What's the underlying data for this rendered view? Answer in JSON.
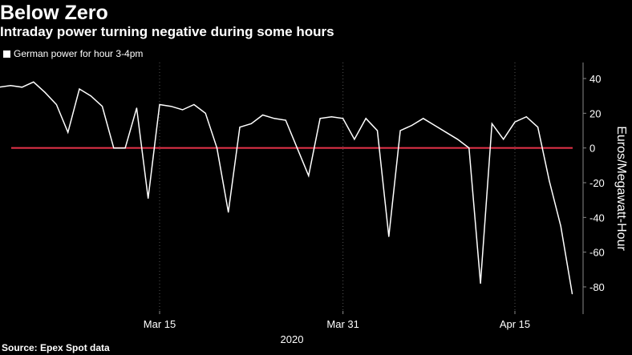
{
  "title": "Below Zero",
  "subtitle": "Intraday power turning negative during some hours",
  "source": "Source: Epex Spot data",
  "colors": {
    "background": "#000000",
    "line": "#ffffff",
    "zero_line": "#e8334a",
    "grid": "#555555"
  },
  "chart_data": {
    "type": "line",
    "title": "Below Zero",
    "subtitle": "Intraday power turning negative during some hours",
    "xlabel": "2020",
    "ylabel": "Euros/Megawatt-Hour",
    "ylim": [
      -85,
      48
    ],
    "y_ticks": [
      40,
      20,
      0,
      -20,
      -40,
      -60,
      -80
    ],
    "y_axis_side": "right",
    "grid": "vertical dotted at x ticks",
    "legend": "top-left",
    "x_ticks": [
      {
        "label": "Mar 15",
        "date": "2020-03-15"
      },
      {
        "label": "Mar 31",
        "date": "2020-03-31"
      },
      {
        "label": "Apr 15",
        "date": "2020-04-15"
      }
    ],
    "year_label": "2020",
    "reference_line": {
      "value": 0,
      "color": "#e8334a"
    },
    "series": [
      {
        "name": "German power for hour 3-4pm",
        "color": "#ffffff",
        "points": [
          {
            "date": "2020-03-01",
            "value": 35
          },
          {
            "date": "2020-03-02",
            "value": 36
          },
          {
            "date": "2020-03-03",
            "value": 35
          },
          {
            "date": "2020-03-04",
            "value": 38
          },
          {
            "date": "2020-03-05",
            "value": 32
          },
          {
            "date": "2020-03-06",
            "value": 25
          },
          {
            "date": "2020-03-07",
            "value": 9
          },
          {
            "date": "2020-03-08",
            "value": 34
          },
          {
            "date": "2020-03-09",
            "value": 30
          },
          {
            "date": "2020-03-10",
            "value": 24
          },
          {
            "date": "2020-03-11",
            "value": 0
          },
          {
            "date": "2020-03-12",
            "value": 0
          },
          {
            "date": "2020-03-13",
            "value": 23
          },
          {
            "date": "2020-03-14",
            "value": -29
          },
          {
            "date": "2020-03-15",
            "value": 25
          },
          {
            "date": "2020-03-16",
            "value": 24
          },
          {
            "date": "2020-03-17",
            "value": 22
          },
          {
            "date": "2020-03-18",
            "value": 25
          },
          {
            "date": "2020-03-19",
            "value": 20
          },
          {
            "date": "2020-03-20",
            "value": 0
          },
          {
            "date": "2020-03-21",
            "value": -37
          },
          {
            "date": "2020-03-22",
            "value": 12
          },
          {
            "date": "2020-03-23",
            "value": 14
          },
          {
            "date": "2020-03-24",
            "value": 19
          },
          {
            "date": "2020-03-25",
            "value": 17
          },
          {
            "date": "2020-03-26",
            "value": 16
          },
          {
            "date": "2020-03-27",
            "value": 0
          },
          {
            "date": "2020-03-28",
            "value": -16
          },
          {
            "date": "2020-03-29",
            "value": 17
          },
          {
            "date": "2020-03-30",
            "value": 18
          },
          {
            "date": "2020-03-31",
            "value": 17
          },
          {
            "date": "2020-04-01",
            "value": 5
          },
          {
            "date": "2020-04-02",
            "value": 17
          },
          {
            "date": "2020-04-03",
            "value": 10
          },
          {
            "date": "2020-04-04",
            "value": -51
          },
          {
            "date": "2020-04-05",
            "value": 10
          },
          {
            "date": "2020-04-06",
            "value": 13
          },
          {
            "date": "2020-04-07",
            "value": 17
          },
          {
            "date": "2020-04-08",
            "value": 13
          },
          {
            "date": "2020-04-09",
            "value": 9
          },
          {
            "date": "2020-04-10",
            "value": 5
          },
          {
            "date": "2020-04-11",
            "value": 0
          },
          {
            "date": "2020-04-12",
            "value": -78
          },
          {
            "date": "2020-04-13",
            "value": 14
          },
          {
            "date": "2020-04-14",
            "value": 5
          },
          {
            "date": "2020-04-15",
            "value": 15
          },
          {
            "date": "2020-04-16",
            "value": 18
          },
          {
            "date": "2020-04-17",
            "value": 12
          },
          {
            "date": "2020-04-18",
            "value": -19
          },
          {
            "date": "2020-04-19",
            "value": -45
          },
          {
            "date": "2020-04-20",
            "value": -84
          }
        ]
      }
    ]
  }
}
